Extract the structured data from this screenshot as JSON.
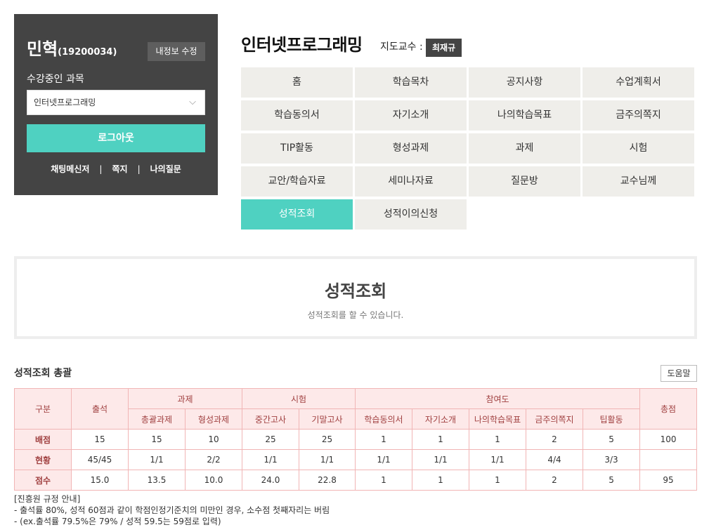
{
  "user": {
    "name": "민혁",
    "id": "(19200034)",
    "edit_label": "내정보 수정",
    "course_label": "수강중인 과목",
    "selected_course": "인터넷프로그래밍",
    "logout_label": "로그아웃",
    "links": [
      "채팅메신저",
      "쪽지",
      "나의질문"
    ]
  },
  "course": {
    "title": "인터넷프로그래밍",
    "professor_label": "지도교수 :",
    "professor_name": "최재규"
  },
  "menu": [
    "홈",
    "학습목차",
    "공지사항",
    "수업계획서",
    "학습동의서",
    "자기소개",
    "나의학습목표",
    "금주의쪽지",
    "TIP활동",
    "형성과제",
    "과제",
    "시험",
    "교안/학습자료",
    "세미나자료",
    "질문방",
    "교수님께",
    "성적조회",
    "성적이의신청"
  ],
  "active_menu": "성적조회",
  "page": {
    "title": "성적조회",
    "subtitle": "성적조회를 할 수 있습니다."
  },
  "summary": {
    "title": "성적조회 총괄",
    "help_label": "도움말",
    "headers": {
      "category": "구분",
      "attendance": "출석",
      "assignment": "과제",
      "exam": "시험",
      "participation": "참여도",
      "total": "총점",
      "assignment_sub": [
        "총괄과제",
        "형성과제"
      ],
      "exam_sub": [
        "중간고사",
        "기말고사"
      ],
      "participation_sub": [
        "학습동의서",
        "자기소개",
        "나의학습목표",
        "금주의쪽지",
        "팁활동"
      ]
    },
    "rows": [
      {
        "label": "배점",
        "cells": [
          "15",
          "15",
          "10",
          "25",
          "25",
          "1",
          "1",
          "1",
          "2",
          "5",
          "100"
        ]
      },
      {
        "label": "현황",
        "cells": [
          "45/45",
          "1/1",
          "2/2",
          "1/1",
          "1/1",
          "1/1",
          "1/1",
          "1/1",
          "4/4",
          "3/3",
          ""
        ]
      },
      {
        "label": "점수",
        "cells": [
          "15.0",
          "13.5",
          "10.0",
          "24.0",
          "22.8",
          "1",
          "1",
          "1",
          "2",
          "5",
          "95"
        ]
      }
    ]
  },
  "notes": [
    "[진흥원 규정 안내]",
    "- 출석률 80%, 성적 60점과 같이 학점인정기준치의 미만인 경우, 소수점 첫째자리는 버림",
    "- (ex.출석률 79.5%은 79% / 성적 59.5는 59점로 입력)"
  ]
}
